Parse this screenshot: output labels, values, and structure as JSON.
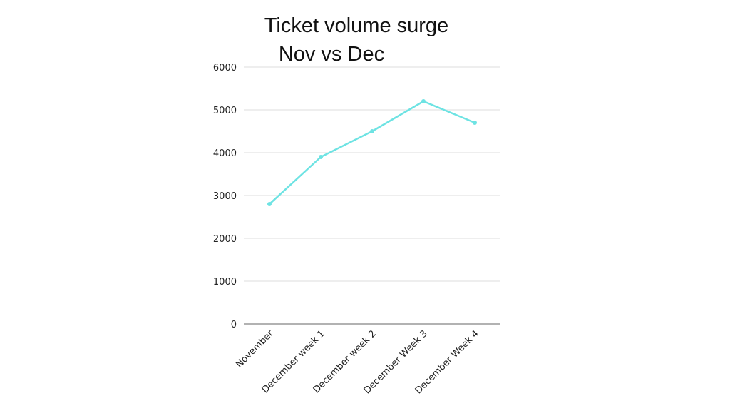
{
  "chart_data": {
    "type": "line",
    "title": "Ticket volume surge",
    "subtitle": "Nov vs Dec",
    "categories": [
      "November",
      "December week 1",
      "December week 2",
      "December Week 3",
      "December Week 4"
    ],
    "values": [
      2800,
      3900,
      4500,
      5200,
      4700
    ],
    "yticks": [
      "0",
      "1000",
      "2000",
      "3000",
      "4000",
      "5000",
      "6000"
    ],
    "ylim": [
      0,
      6000
    ],
    "xlabel": "",
    "ylabel": "",
    "grid": true,
    "series_color": "#6ee3e3",
    "grid_color": "#dddddd",
    "axis_color": "#999999"
  }
}
